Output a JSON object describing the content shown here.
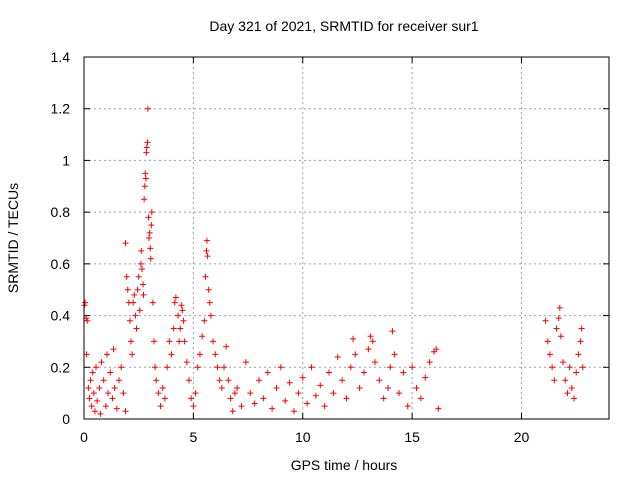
{
  "chart_data": {
    "type": "scatter",
    "title": "Day 321 of 2021, SRMTID for receiver sur1",
    "xlabel": "GPS time / hours",
    "ylabel": "SRMTID / TECUs",
    "xlim": [
      0,
      24
    ],
    "ylim": [
      0,
      1.4
    ],
    "xticks": [
      0,
      5,
      10,
      15,
      20
    ],
    "yticks": [
      0,
      0.2,
      0.4,
      0.6,
      0.8,
      1,
      1.2,
      1.4
    ],
    "xtick_labels": [
      "0",
      "5",
      "10",
      "15",
      "20"
    ],
    "ytick_labels": [
      "0",
      "0.2",
      "0.4",
      "0.6",
      "0.8",
      "1",
      "1.2",
      "1.4"
    ],
    "grid": true,
    "marker": "+",
    "marker_color": "#ff0000",
    "series": [
      {
        "name": "sur1",
        "points": [
          [
            0.02,
            0.44
          ],
          [
            0.05,
            0.45
          ],
          [
            0.1,
            0.39
          ],
          [
            0.12,
            0.25
          ],
          [
            0.15,
            0.38
          ],
          [
            0.2,
            0.12
          ],
          [
            0.25,
            0.08
          ],
          [
            0.3,
            0.15
          ],
          [
            0.35,
            0.05
          ],
          [
            0.4,
            0.18
          ],
          [
            0.45,
            0.1
          ],
          [
            0.5,
            0.03
          ],
          [
            0.55,
            0.2
          ],
          [
            0.6,
            0.07
          ],
          [
            0.7,
            0.12
          ],
          [
            0.75,
            0.02
          ],
          [
            0.8,
            0.22
          ],
          [
            0.9,
            0.15
          ],
          [
            1.0,
            0.05
          ],
          [
            1.05,
            0.25
          ],
          [
            1.1,
            0.1
          ],
          [
            1.2,
            0.18
          ],
          [
            1.3,
            0.08
          ],
          [
            1.35,
            0.27
          ],
          [
            1.4,
            0.12
          ],
          [
            1.5,
            0.04
          ],
          [
            1.6,
            0.15
          ],
          [
            1.7,
            0.2
          ],
          [
            1.8,
            0.1
          ],
          [
            1.9,
            0.03
          ],
          [
            1.9,
            0.68
          ],
          [
            1.95,
            0.55
          ],
          [
            2.0,
            0.5
          ],
          [
            2.05,
            0.45
          ],
          [
            2.1,
            0.38
          ],
          [
            2.15,
            0.3
          ],
          [
            2.2,
            0.25
          ],
          [
            2.25,
            0.45
          ],
          [
            2.3,
            0.48
          ],
          [
            2.35,
            0.4
          ],
          [
            2.4,
            0.35
          ],
          [
            2.45,
            0.5
          ],
          [
            2.5,
            0.55
          ],
          [
            2.55,
            0.42
          ],
          [
            2.6,
            0.6
          ],
          [
            2.62,
            0.65
          ],
          [
            2.65,
            0.58
          ],
          [
            2.7,
            0.52
          ],
          [
            2.72,
            0.48
          ],
          [
            2.75,
            0.85
          ],
          [
            2.78,
            0.9
          ],
          [
            2.8,
            0.95
          ],
          [
            2.83,
            0.93
          ],
          [
            2.85,
            1.03
          ],
          [
            2.87,
            1.05
          ],
          [
            2.9,
            1.07
          ],
          [
            2.92,
            1.2
          ],
          [
            2.95,
            0.78
          ],
          [
            2.97,
            0.7
          ],
          [
            3.0,
            0.72
          ],
          [
            3.03,
            0.66
          ],
          [
            3.05,
            0.62
          ],
          [
            3.08,
            0.75
          ],
          [
            3.1,
            0.8
          ],
          [
            3.15,
            0.45
          ],
          [
            3.2,
            0.3
          ],
          [
            3.25,
            0.2
          ],
          [
            3.3,
            0.15
          ],
          [
            3.4,
            0.1
          ],
          [
            3.5,
            0.05
          ],
          [
            3.6,
            0.12
          ],
          [
            3.7,
            0.08
          ],
          [
            3.8,
            0.2
          ],
          [
            3.9,
            0.3
          ],
          [
            4.0,
            0.25
          ],
          [
            4.1,
            0.35
          ],
          [
            4.15,
            0.45
          ],
          [
            4.2,
            0.47
          ],
          [
            4.3,
            0.4
          ],
          [
            4.35,
            0.3
          ],
          [
            4.4,
            0.35
          ],
          [
            4.45,
            0.44
          ],
          [
            4.5,
            0.42
          ],
          [
            4.55,
            0.38
          ],
          [
            4.6,
            0.3
          ],
          [
            4.7,
            0.22
          ],
          [
            4.8,
            0.15
          ],
          [
            4.9,
            0.08
          ],
          [
            5.0,
            0.05
          ],
          [
            5.1,
            0.1
          ],
          [
            5.2,
            0.2
          ],
          [
            5.3,
            0.25
          ],
          [
            5.4,
            0.32
          ],
          [
            5.5,
            0.38
          ],
          [
            5.55,
            0.55
          ],
          [
            5.6,
            0.65
          ],
          [
            5.62,
            0.69
          ],
          [
            5.65,
            0.63
          ],
          [
            5.7,
            0.5
          ],
          [
            5.75,
            0.45
          ],
          [
            5.8,
            0.4
          ],
          [
            5.9,
            0.3
          ],
          [
            6.0,
            0.25
          ],
          [
            6.1,
            0.2
          ],
          [
            6.2,
            0.15
          ],
          [
            6.3,
            0.12
          ],
          [
            6.4,
            0.2
          ],
          [
            6.5,
            0.28
          ],
          [
            6.6,
            0.15
          ],
          [
            6.7,
            0.08
          ],
          [
            6.8,
            0.03
          ],
          [
            6.9,
            0.1
          ],
          [
            7.0,
            0.12
          ],
          [
            7.2,
            0.05
          ],
          [
            7.4,
            0.22
          ],
          [
            7.6,
            0.1
          ],
          [
            7.8,
            0.06
          ],
          [
            8.0,
            0.15
          ],
          [
            8.2,
            0.08
          ],
          [
            8.4,
            0.18
          ],
          [
            8.6,
            0.04
          ],
          [
            8.8,
            0.12
          ],
          [
            9.0,
            0.2
          ],
          [
            9.2,
            0.07
          ],
          [
            9.4,
            0.14
          ],
          [
            9.6,
            0.03
          ],
          [
            9.8,
            0.1
          ],
          [
            10.0,
            0.16
          ],
          [
            10.2,
            0.06
          ],
          [
            10.4,
            0.2
          ],
          [
            10.6,
            0.09
          ],
          [
            10.8,
            0.13
          ],
          [
            11.0,
            0.05
          ],
          [
            11.2,
            0.18
          ],
          [
            11.4,
            0.1
          ],
          [
            11.6,
            0.24
          ],
          [
            11.8,
            0.15
          ],
          [
            12.0,
            0.08
          ],
          [
            12.2,
            0.2
          ],
          [
            12.3,
            0.31
          ],
          [
            12.4,
            0.25
          ],
          [
            12.6,
            0.12
          ],
          [
            12.8,
            0.18
          ],
          [
            13.0,
            0.27
          ],
          [
            13.1,
            0.32
          ],
          [
            13.2,
            0.3
          ],
          [
            13.3,
            0.22
          ],
          [
            13.5,
            0.15
          ],
          [
            13.7,
            0.08
          ],
          [
            13.9,
            0.12
          ],
          [
            14.0,
            0.2
          ],
          [
            14.1,
            0.34
          ],
          [
            14.2,
            0.25
          ],
          [
            14.4,
            0.1
          ],
          [
            14.6,
            0.18
          ],
          [
            14.8,
            0.05
          ],
          [
            15.0,
            0.2
          ],
          [
            15.2,
            0.12
          ],
          [
            15.4,
            0.08
          ],
          [
            15.6,
            0.16
          ],
          [
            15.8,
            0.22
          ],
          [
            16.0,
            0.26
          ],
          [
            16.1,
            0.27
          ],
          [
            16.2,
            0.04
          ],
          [
            21.1,
            0.38
          ],
          [
            21.2,
            0.3
          ],
          [
            21.3,
            0.25
          ],
          [
            21.4,
            0.2
          ],
          [
            21.5,
            0.15
          ],
          [
            21.6,
            0.35
          ],
          [
            21.7,
            0.39
          ],
          [
            21.75,
            0.43
          ],
          [
            21.8,
            0.32
          ],
          [
            21.9,
            0.22
          ],
          [
            22.0,
            0.15
          ],
          [
            22.1,
            0.1
          ],
          [
            22.2,
            0.2
          ],
          [
            22.3,
            0.12
          ],
          [
            22.4,
            0.08
          ],
          [
            22.5,
            0.18
          ],
          [
            22.6,
            0.25
          ],
          [
            22.7,
            0.3
          ],
          [
            22.75,
            0.35
          ],
          [
            22.8,
            0.2
          ]
        ]
      }
    ]
  }
}
